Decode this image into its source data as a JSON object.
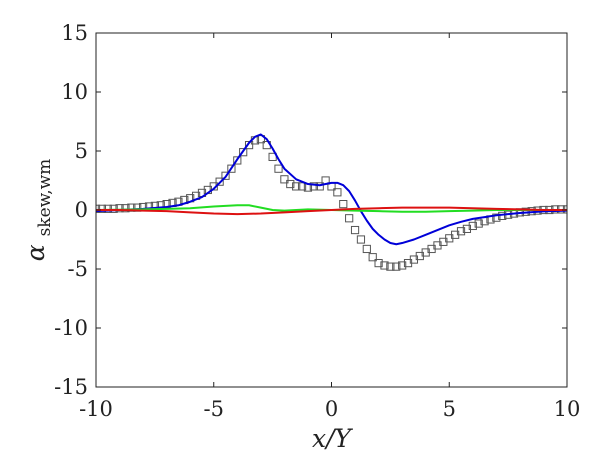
{
  "chart_data": {
    "type": "line",
    "xlabel": "x/Y",
    "ylabel": "α_skew,wm",
    "ylabel_parts": {
      "main": "α",
      "sub": "skew,wm"
    },
    "xlim": [
      -10,
      10
    ],
    "ylim": [
      -15,
      15
    ],
    "xticks": [
      -10,
      -5,
      0,
      5,
      10
    ],
    "yticks": [
      -15,
      -10,
      -5,
      0,
      5,
      10,
      15
    ],
    "xtick_labels": [
      "-10",
      "-5",
      "0",
      "5",
      "10"
    ],
    "ytick_labels": [
      "-15",
      "-10",
      "-5",
      "0",
      "5",
      "10",
      "15"
    ],
    "grid": false,
    "legend": "none",
    "colors": {
      "blue": "#0000d8",
      "green": "#22dd22",
      "red": "#dd1111",
      "markers": "#555555",
      "axis": "#222222"
    },
    "series": [
      {
        "style": "markers",
        "marker": "square",
        "color": "#555555",
        "x": [
          -10.0,
          -9.75,
          -9.5,
          -9.25,
          -9.0,
          -8.75,
          -8.5,
          -8.25,
          -8.0,
          -7.75,
          -7.5,
          -7.25,
          -7.0,
          -6.75,
          -6.5,
          -6.25,
          -6.0,
          -5.75,
          -5.5,
          -5.25,
          -5.0,
          -4.75,
          -4.5,
          -4.25,
          -4.0,
          -3.75,
          -3.5,
          -3.25,
          -3.0,
          -2.75,
          -2.5,
          -2.25,
          -2.0,
          -1.75,
          -1.5,
          -1.25,
          -1.0,
          -0.75,
          -0.5,
          -0.25,
          0.0,
          0.25,
          0.5,
          0.75,
          1.0,
          1.25,
          1.5,
          1.75,
          2.0,
          2.25,
          2.5,
          2.75,
          3.0,
          3.25,
          3.5,
          3.75,
          4.0,
          4.25,
          4.5,
          4.75,
          5.0,
          5.25,
          5.5,
          5.75,
          6.0,
          6.25,
          6.5,
          6.75,
          7.0,
          7.25,
          7.5,
          7.75,
          8.0,
          8.25,
          8.5,
          8.75,
          9.0,
          9.25,
          9.5,
          9.75,
          10.0
        ],
        "y": [
          0.1,
          0.1,
          0.1,
          0.1,
          0.15,
          0.15,
          0.2,
          0.2,
          0.25,
          0.3,
          0.35,
          0.4,
          0.5,
          0.6,
          0.7,
          0.85,
          1.0,
          1.2,
          1.45,
          1.7,
          2.0,
          2.4,
          2.9,
          3.5,
          4.2,
          4.9,
          5.5,
          5.9,
          6.0,
          5.5,
          4.5,
          3.5,
          2.6,
          2.2,
          2.0,
          2.0,
          1.9,
          2.0,
          2.0,
          2.5,
          2.0,
          1.5,
          0.5,
          -0.7,
          -1.7,
          -2.5,
          -3.3,
          -4.0,
          -4.5,
          -4.7,
          -4.8,
          -4.8,
          -4.7,
          -4.5,
          -4.2,
          -3.9,
          -3.6,
          -3.3,
          -3.0,
          -2.7,
          -2.4,
          -2.1,
          -1.8,
          -1.6,
          -1.35,
          -1.15,
          -0.95,
          -0.8,
          -0.65,
          -0.5,
          -0.4,
          -0.3,
          -0.2,
          -0.15,
          -0.1,
          -0.05,
          0.0,
          0.0,
          0.05,
          0.05,
          0.05
        ]
      },
      {
        "style": "line",
        "color": "#0000d8",
        "x": [
          -10,
          -9,
          -8,
          -7,
          -6.5,
          -6,
          -5.5,
          -5,
          -4.5,
          -4,
          -3.75,
          -3.5,
          -3.25,
          -3,
          -2.75,
          -2.5,
          -2.25,
          -2,
          -1.5,
          -1,
          -0.5,
          -0.25,
          0,
          0.25,
          0.5,
          0.75,
          1,
          1.25,
          1.5,
          1.75,
          2,
          2.25,
          2.5,
          2.75,
          3,
          3.5,
          4,
          4.5,
          5,
          5.5,
          6,
          7,
          8,
          9,
          10
        ],
        "y": [
          -0.1,
          0.0,
          0.1,
          0.25,
          0.4,
          0.7,
          1.1,
          1.8,
          2.8,
          4.3,
          5.0,
          5.7,
          6.2,
          6.4,
          6.0,
          5.2,
          4.3,
          3.5,
          2.6,
          2.2,
          2.1,
          2.2,
          2.3,
          2.3,
          2.1,
          1.6,
          0.8,
          -0.1,
          -0.9,
          -1.6,
          -2.1,
          -2.5,
          -2.8,
          -2.9,
          -2.8,
          -2.5,
          -2.1,
          -1.7,
          -1.3,
          -1.0,
          -0.75,
          -0.45,
          -0.25,
          -0.12,
          -0.05
        ]
      },
      {
        "style": "line",
        "color": "#22dd22",
        "x": [
          -10,
          -8,
          -7,
          -6,
          -5,
          -4.5,
          -4,
          -3.5,
          -3,
          -2.5,
          -2,
          -1.5,
          -1,
          0,
          1,
          2,
          3,
          4,
          5,
          6,
          7,
          8,
          9,
          10
        ],
        "y": [
          0.0,
          0.05,
          0.1,
          0.15,
          0.3,
          0.35,
          0.4,
          0.4,
          0.2,
          0.0,
          -0.05,
          0.0,
          0.05,
          0.0,
          -0.05,
          -0.1,
          -0.15,
          -0.15,
          -0.1,
          -0.05,
          0.0,
          0.0,
          0.0,
          0.0
        ]
      },
      {
        "style": "line",
        "color": "#dd1111",
        "x": [
          -10,
          -9,
          -8,
          -7,
          -6,
          -5,
          -4,
          -3,
          -2,
          -1,
          0,
          1,
          2,
          3,
          4,
          5,
          6,
          7,
          8,
          9,
          10
        ],
        "y": [
          0.0,
          0.0,
          -0.05,
          -0.1,
          -0.2,
          -0.3,
          -0.35,
          -0.3,
          -0.2,
          -0.1,
          0.0,
          0.1,
          0.15,
          0.2,
          0.2,
          0.2,
          0.15,
          0.1,
          0.05,
          0.0,
          0.0
        ]
      }
    ]
  }
}
